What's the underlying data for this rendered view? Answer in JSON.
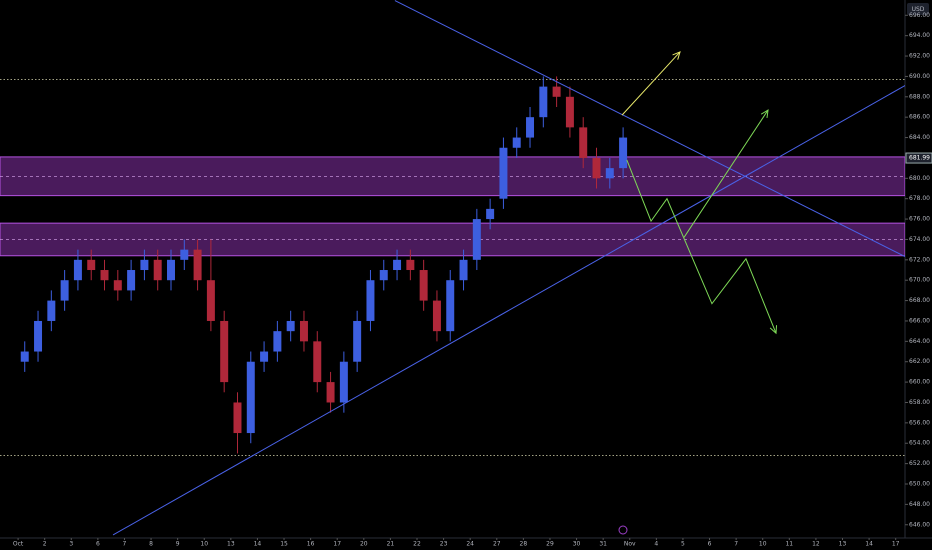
{
  "chart_data": {
    "type": "candlestick",
    "currency": "USD",
    "ylim": [
      644.7,
      697.5
    ],
    "yticks": [
      {
        "value": 646,
        "label": "646.00"
      },
      {
        "value": 648,
        "label": "648.00"
      },
      {
        "value": 650,
        "label": "650.00"
      },
      {
        "value": 652,
        "label": "652.00"
      },
      {
        "value": 654,
        "label": "654.00"
      },
      {
        "value": 656,
        "label": "656.00"
      },
      {
        "value": 658,
        "label": "658.00"
      },
      {
        "value": 660,
        "label": "660.00"
      },
      {
        "value": 662,
        "label": "662.00"
      },
      {
        "value": 664,
        "label": "664.00"
      },
      {
        "value": 666,
        "label": "666.00"
      },
      {
        "value": 668,
        "label": "668.00"
      },
      {
        "value": 670,
        "label": "670.00"
      },
      {
        "value": 672,
        "label": "672.00"
      },
      {
        "value": 674,
        "label": "674.00"
      },
      {
        "value": 676,
        "label": "676.00"
      },
      {
        "value": 678,
        "label": "678.00"
      },
      {
        "value": 680,
        "label": "680.00"
      },
      {
        "value": 684,
        "label": "684.00"
      },
      {
        "value": 686,
        "label": "686.00"
      },
      {
        "value": 688,
        "label": "688.00"
      },
      {
        "value": 690,
        "label": "690.00"
      },
      {
        "value": 692,
        "label": "692.00"
      },
      {
        "value": 694,
        "label": "694.00"
      },
      {
        "value": 696,
        "label": "696.00"
      }
    ],
    "xlim": [
      -0.68,
      33.35
    ],
    "xticks": [
      {
        "value": 0,
        "label": "Oct"
      },
      {
        "value": 1,
        "label": "2"
      },
      {
        "value": 2,
        "label": "3"
      },
      {
        "value": 3,
        "label": "6"
      },
      {
        "value": 4,
        "label": "7"
      },
      {
        "value": 5,
        "label": "8"
      },
      {
        "value": 6,
        "label": "9"
      },
      {
        "value": 7,
        "label": "10"
      },
      {
        "value": 8,
        "label": "13"
      },
      {
        "value": 9,
        "label": "14"
      },
      {
        "value": 10,
        "label": "15"
      },
      {
        "value": 11,
        "label": "16"
      },
      {
        "value": 12,
        "label": "17"
      },
      {
        "value": 13,
        "label": "20"
      },
      {
        "value": 14,
        "label": "21"
      },
      {
        "value": 15,
        "label": "22"
      },
      {
        "value": 16,
        "label": "23"
      },
      {
        "value": 17,
        "label": "24"
      },
      {
        "value": 18,
        "label": "27"
      },
      {
        "value": 19,
        "label": "28"
      },
      {
        "value": 20,
        "label": "29"
      },
      {
        "value": 21,
        "label": "30"
      },
      {
        "value": 22,
        "label": "31"
      },
      {
        "value": 23,
        "label": "Nov"
      },
      {
        "value": 24,
        "label": "4"
      },
      {
        "value": 25,
        "label": "5"
      },
      {
        "value": 26,
        "label": "6"
      },
      {
        "value": 27,
        "label": "7"
      },
      {
        "value": 28,
        "label": "10"
      },
      {
        "value": 29,
        "label": "11"
      },
      {
        "value": 30,
        "label": "12"
      },
      {
        "value": 31,
        "label": "13"
      },
      {
        "value": 32,
        "label": "14"
      },
      {
        "value": 33,
        "label": "17"
      }
    ],
    "candles": {
      "x": [
        0.25,
        0.75,
        1.25,
        1.75,
        2.25,
        2.75,
        3.25,
        3.75,
        4.25,
        4.75,
        5.25,
        5.75,
        6.25,
        6.75,
        7.25,
        7.75,
        8.25,
        8.75,
        9.25,
        9.75,
        10.25,
        10.75,
        11.25,
        11.75,
        12.25,
        12.75,
        13.25,
        13.75,
        14.25,
        14.75,
        15.25,
        15.75,
        16.25,
        16.75,
        17.25,
        17.75,
        18.25,
        18.75,
        19.25,
        19.75,
        20.25,
        20.75,
        21.25,
        21.75,
        22.25,
        22.75
      ],
      "open": [
        662,
        663,
        666,
        668,
        670,
        672,
        671,
        670,
        669,
        671,
        672,
        670,
        672,
        673,
        670,
        666,
        658,
        655,
        662,
        663,
        665,
        666,
        664,
        660,
        658,
        662,
        666,
        670,
        671,
        672,
        671,
        668,
        665,
        670,
        672,
        676,
        678,
        683,
        684,
        686,
        689,
        688,
        685,
        682,
        680,
        681
      ],
      "high": [
        664,
        667,
        669,
        671,
        673,
        673,
        672,
        671,
        672,
        673,
        673,
        673,
        674,
        674,
        674,
        667,
        659,
        663,
        664,
        666,
        667,
        667,
        665,
        661,
        663,
        667,
        671,
        672,
        673,
        673,
        672,
        669,
        671,
        673,
        677,
        678,
        684,
        685,
        687,
        690,
        690,
        689,
        686,
        683,
        682,
        685
      ],
      "low": [
        661,
        662,
        665,
        667,
        669,
        670,
        669,
        668,
        668,
        670,
        669,
        669,
        671,
        669,
        665,
        659,
        653,
        654,
        661,
        662,
        664,
        663,
        659,
        657,
        657,
        661,
        665,
        669,
        670,
        670,
        667,
        664,
        664,
        669,
        671,
        675,
        677,
        682,
        683,
        685,
        687,
        684,
        681,
        679,
        679,
        680
      ],
      "close": [
        663,
        666,
        668,
        670,
        672,
        671,
        670,
        669,
        671,
        672,
        670,
        672,
        673,
        670,
        666,
        660,
        655,
        662,
        663,
        665,
        666,
        664,
        660,
        658,
        662,
        666,
        670,
        671,
        672,
        671,
        668,
        665,
        670,
        672,
        676,
        677,
        683,
        684,
        686,
        689,
        688,
        685,
        682,
        680,
        681,
        684
      ]
    },
    "up_color": "#3d5fe0",
    "down_color": "#b0283a",
    "last_price": 681.99,
    "zone_color": "#7b2d9a",
    "zones": [
      {
        "top": 682.1,
        "bottom": 678.3
      },
      {
        "top": 675.6,
        "bottom": 672.4
      }
    ],
    "levels": [
      689.7,
      652.8
    ],
    "trendline_color": "#4a62e8",
    "trendlines": [
      {
        "x": [
          14.17,
          34.36
        ],
        "values": [
          697.45,
          671.0
        ]
      },
      {
        "x": [
          3.57,
          34.36
        ],
        "values": [
          645.0,
          690.6
        ]
      }
    ],
    "projections": [
      {
        "color": "#e8e86a",
        "x": [
          22.71,
          24.89
        ],
        "values": [
          686.2,
          692.4
        ]
      },
      {
        "color": "#7ed957",
        "x": [
          22.89,
          23.8,
          24.4,
          26.09,
          27.37,
          28.5
        ],
        "values": [
          681.8,
          675.8,
          678.0,
          667.7,
          672.1,
          664.8
        ]
      },
      {
        "color": "#7ed957",
        "x": [
          25.04,
          28.2
        ],
        "values": [
          674.2,
          686.7
        ]
      }
    ]
  }
}
